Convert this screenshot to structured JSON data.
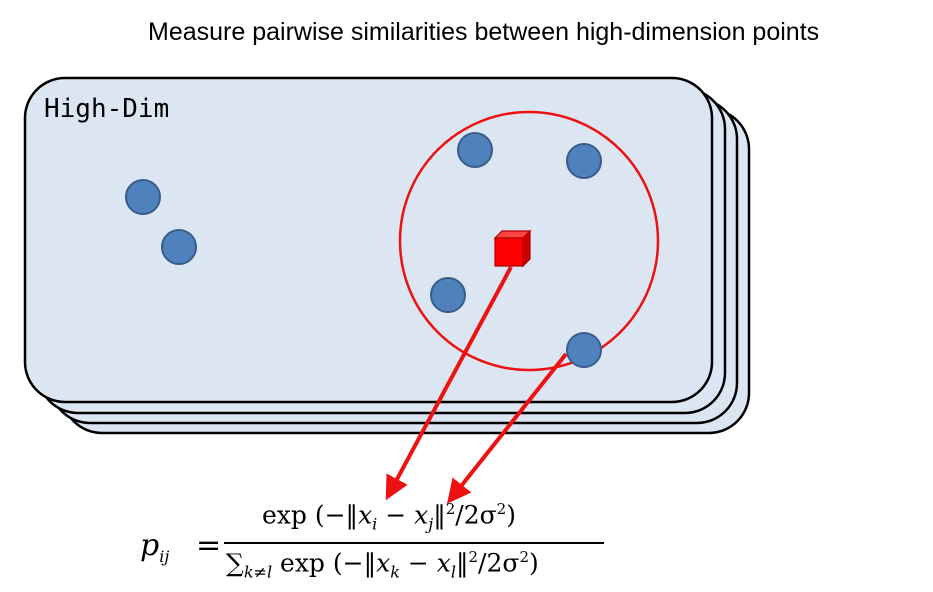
{
  "diagram": {
    "title": "Measure pairwise similarities between high-dimension points",
    "panel_label": "High-Dim"
  },
  "formula": {
    "lhs_symbol": "p",
    "lhs_subscript": "ij",
    "equals": "=",
    "numerator": {
      "exp": "exp",
      "open": "(−‖",
      "x1": "x",
      "x1_sub": "i",
      "minus": " − ",
      "x2": "x",
      "x2_sub": "j",
      "norm_close": "‖",
      "power": "2",
      "over": "/2σ",
      "sigma_power": "2",
      "close": ")"
    },
    "denominator": {
      "sum": "∑",
      "sum_sub": "k≠l",
      "exp": " exp",
      "open": "(−‖",
      "x1": "x",
      "x1_sub": "k",
      "minus": " − ",
      "x2": "x",
      "x2_sub": "l",
      "norm_close": "‖",
      "power": "2",
      "over": "/2σ",
      "sigma_power": "2",
      "close": ")"
    }
  },
  "colors": {
    "panel_fill": "#dce6f2",
    "panel_stroke": "#000000",
    "point_fill": "#4f81bd",
    "point_stroke": "#385d8a",
    "highlight": "#ee1111",
    "cube_front": "#ff0000",
    "cube_top": "#ff4444",
    "cube_side": "#cc0000"
  },
  "icons": {
    "points": "circle",
    "query_point": "cube-icon"
  }
}
